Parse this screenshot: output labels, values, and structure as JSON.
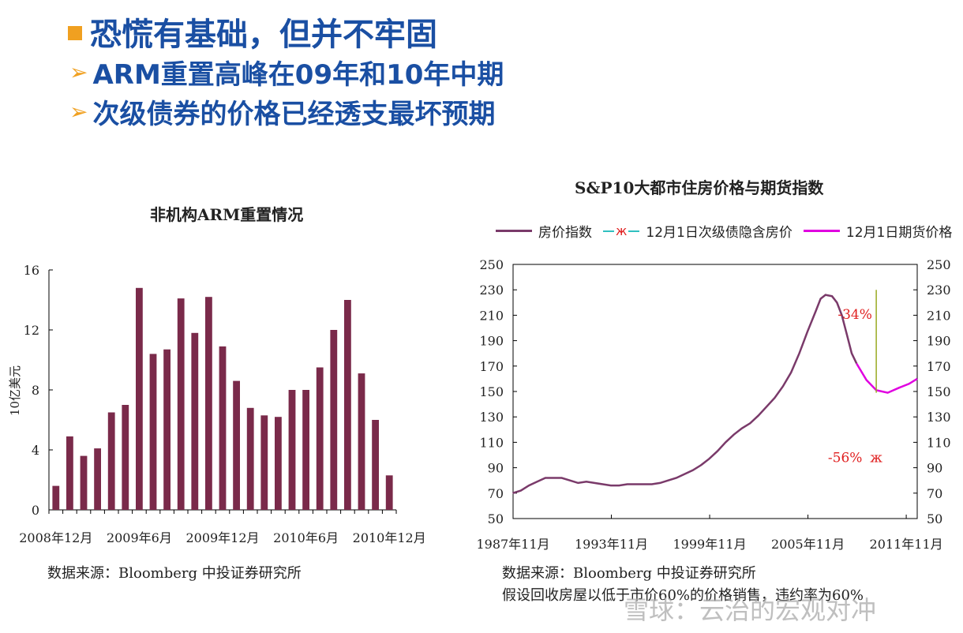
{
  "slide": {
    "title": "恐慌有基础，但并不牢固",
    "bullets": [
      "ARM重置高峰在09年和10年中期",
      "次级债券的价格已经透支最坏预期"
    ]
  },
  "colors": {
    "headline": "#1a4fa3",
    "bullet": "#f0a020",
    "bar": "#7a2a4a",
    "house_index": "#7a3a6a",
    "futures": "#e000e0",
    "implied": "#30c0c0",
    "annotation": "#e02020",
    "vline": "#99aa22"
  },
  "left_source": "数据来源：Bloomberg 中投证券研究所",
  "right_source": "数据来源：Bloomberg 中投证券研究所",
  "right_note": "假设回收房屋以低于市价60%的价格销售，违约率为60%",
  "watermark": "雪球：云治的宏观对冲",
  "chart_data": [
    {
      "type": "bar",
      "title": "非机构ARM重置情况",
      "ylabel": "10亿美元",
      "ylim": [
        0,
        16
      ],
      "yticks": [
        0,
        4,
        8,
        12,
        16
      ],
      "xtick_labels": [
        "2008年12月",
        "2009年6月",
        "2009年12月",
        "2010年6月",
        "2010年12月"
      ],
      "xtick_index": [
        0,
        6,
        12,
        18,
        24
      ],
      "categories": [
        "2008-12",
        "2009-01",
        "2009-02",
        "2009-03",
        "2009-04",
        "2009-05",
        "2009-06",
        "2009-07",
        "2009-08",
        "2009-09",
        "2009-10",
        "2009-11",
        "2009-12",
        "2010-01",
        "2010-02",
        "2010-03",
        "2010-04",
        "2010-05",
        "2010-06",
        "2010-07",
        "2010-08",
        "2010-09",
        "2010-10",
        "2010-11",
        "2010-12"
      ],
      "values": [
        1.6,
        4.9,
        3.6,
        4.1,
        6.5,
        7.0,
        14.8,
        10.4,
        10.7,
        14.1,
        11.8,
        14.2,
        10.9,
        8.6,
        6.8,
        6.3,
        6.2,
        8.0,
        8.0,
        9.5,
        12.0,
        14.0,
        9.1,
        6.0,
        2.3
      ]
    },
    {
      "type": "line",
      "title": "S&P10大都市住房价格与期货指数",
      "xlim": [
        1987.83,
        2012.5
      ],
      "ylim": [
        50,
        250
      ],
      "yticks": [
        50,
        70,
        90,
        110,
        130,
        150,
        170,
        190,
        210,
        230,
        250
      ],
      "xticks": [
        {
          "value": 1987.83,
          "label": "1987年11月"
        },
        {
          "value": 1993.83,
          "label": "1993年11月"
        },
        {
          "value": 1999.83,
          "label": "1999年11月"
        },
        {
          "value": 2005.83,
          "label": "2005年11月"
        },
        {
          "value": 2011.83,
          "label": "2011年11月"
        }
      ],
      "series": [
        {
          "name": "房价指数",
          "x": [
            1987.8,
            1988.3,
            1988.8,
            1989.3,
            1989.8,
            1990.3,
            1990.8,
            1991.3,
            1991.8,
            1992.3,
            1992.8,
            1993.3,
            1993.8,
            1994.3,
            1994.8,
            1995.3,
            1995.8,
            1996.3,
            1996.8,
            1997.3,
            1997.8,
            1998.3,
            1998.8,
            1999.3,
            1999.8,
            2000.3,
            2000.8,
            2001.3,
            2001.8,
            2002.3,
            2002.8,
            2003.3,
            2003.8,
            2004.3,
            2004.8,
            2005.3,
            2005.8,
            2006.3,
            2006.6,
            2006.9,
            2007.3,
            2007.6,
            2007.9,
            2008.2,
            2008.5,
            2008.8
          ],
          "y": [
            70,
            72,
            76,
            79,
            82,
            82,
            82,
            80,
            78,
            79,
            78,
            77,
            76,
            76,
            77,
            77,
            77,
            77,
            78,
            80,
            82,
            85,
            88,
            92,
            97,
            103,
            110,
            116,
            121,
            125,
            131,
            138,
            145,
            154,
            165,
            180,
            197,
            213,
            223,
            226,
            225,
            220,
            210,
            195,
            180,
            172
          ]
        },
        {
          "name": "12月1日次级债隐含房价",
          "x": [
            2010.0
          ],
          "y": [
            98
          ]
        },
        {
          "name": "12月1日期货价格",
          "x": [
            2008.8,
            2009.4,
            2010.0,
            2010.7,
            2011.4,
            2012.0,
            2012.5
          ],
          "y": [
            172,
            159,
            151,
            149,
            153,
            156,
            160
          ]
        }
      ],
      "annotations": [
        {
          "text": "-34%",
          "x": 2008.7,
          "y": 211
        },
        {
          "text": "-56%",
          "x": 2008.1,
          "y": 98
        },
        {
          "text": "ж",
          "x": 2010.0,
          "y": 98
        }
      ],
      "vline": {
        "x": 2010.0,
        "y_from": 149,
        "y_to": 230
      }
    }
  ]
}
